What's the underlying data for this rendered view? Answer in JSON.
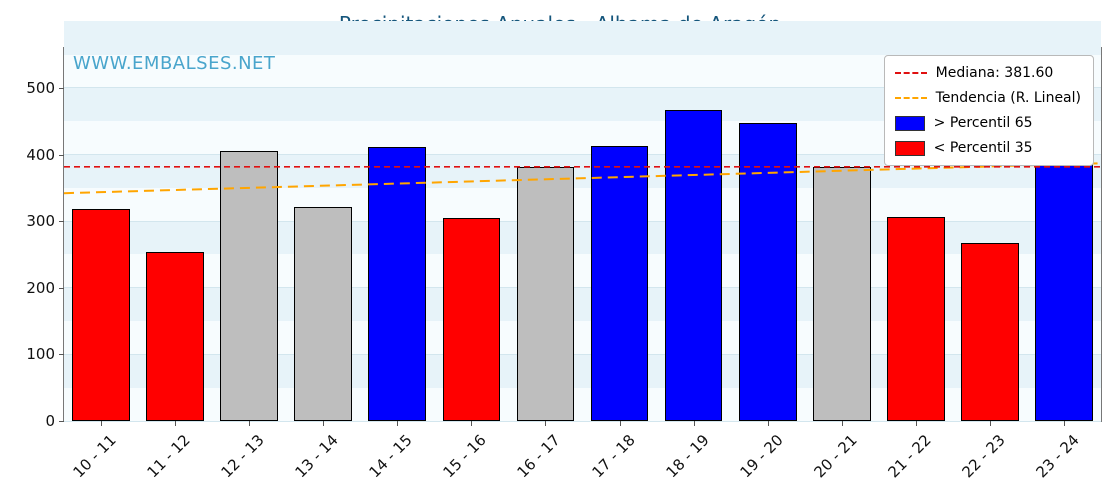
{
  "chart_data": {
    "type": "bar",
    "title": "Precipitaciones Anuales - Alhama de Aragón",
    "watermark": "WWW.EMBALSES.NET",
    "categories": [
      "10 - 11",
      "11 - 12",
      "12 - 13",
      "13 - 14",
      "14 - 15",
      "15 - 16",
      "16 - 17",
      "17 - 18",
      "18 - 19",
      "19 - 20",
      "20 - 21",
      "21 - 22",
      "22 - 23",
      "23 - 24"
    ],
    "values": [
      318,
      254,
      405,
      321,
      411,
      305,
      382,
      413,
      467,
      448,
      382,
      306,
      268,
      410
    ],
    "bar_classes": [
      "below",
      "below",
      "mid",
      "mid",
      "above",
      "below",
      "mid",
      "above",
      "above",
      "above",
      "mid",
      "below",
      "below",
      "above"
    ],
    "class_colors": {
      "below": "#ff0000",
      "mid": "#bebebe",
      "above": "#0000ff"
    },
    "median_value": 381.6,
    "trend_start": 342,
    "trend_end": 387,
    "ylim": [
      0,
      560
    ],
    "yticks": [
      0,
      100,
      200,
      300,
      400,
      500
    ],
    "legend": [
      {
        "label": "Mediana: 381.60"
      },
      {
        "label": "Tendencia (R. Lineal)"
      },
      {
        "label": "> Percentil 65"
      },
      {
        "label": "< Percentil 35"
      }
    ],
    "colors": {
      "median_line": "#e01010",
      "trend_line": "#ffa500",
      "title": "#15567c",
      "watermark": "#49a5cc",
      "grid": "#d3e6ee",
      "band": "#e7f3f9"
    }
  }
}
